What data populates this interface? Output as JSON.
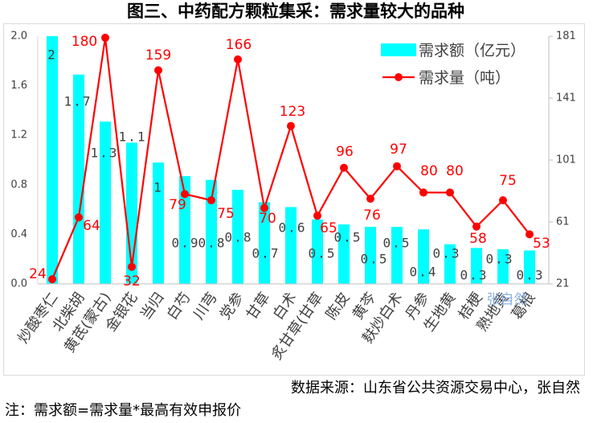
{
  "chart_data": {
    "type": "bar",
    "title": "图三、中药配方颗粒集采：需求量较大的品种",
    "categories": [
      "炒酸枣仁",
      "北柴胡",
      "黄芪(蒙古)",
      "金银花",
      "当归",
      "白芍",
      "川芎",
      "党参",
      "甘草",
      "白术",
      "炙甘草(甘草",
      "陈皮",
      "黄芩",
      "麸炒白术",
      "丹参",
      "生地黄",
      "桔梗",
      "熟地黄",
      "葛根"
    ],
    "series": [
      {
        "name": "需求额（亿元）",
        "type": "bar",
        "axis": "left",
        "color": "#00FFFF",
        "values": [
          2.0,
          1.69,
          1.31,
          1.14,
          0.98,
          0.87,
          0.84,
          0.76,
          0.66,
          0.62,
          0.52,
          0.48,
          0.46,
          0.46,
          0.44,
          0.32,
          0.29,
          0.28,
          0.27
        ],
        "data_labels": [
          "2",
          "1.7",
          "1.3",
          "1.1",
          "1",
          "0.9",
          "0.8",
          "0.8",
          "0.7",
          "0.6",
          "0.5",
          "0.5",
          "0.5",
          "0.5",
          "0.4",
          "0.3",
          "0.3",
          "0.3",
          "0.3"
        ]
      },
      {
        "name": "需求量（吨）",
        "type": "line",
        "axis": "right",
        "color": "#FF0000",
        "values": [
          24,
          64,
          180,
          32,
          159,
          79,
          75,
          166,
          70,
          123,
          65,
          96,
          76,
          97,
          80,
          80,
          58,
          75,
          53
        ]
      }
    ],
    "y_left": {
      "range": [
        0,
        2.0
      ],
      "ticks": [
        "0.0",
        "0.4",
        "0.8",
        "1.2",
        "1.6",
        "2.0"
      ]
    },
    "y_right": {
      "range": [
        21,
        181
      ],
      "ticks": [
        "21",
        "61",
        "101",
        "141",
        "181"
      ]
    },
    "grid": false,
    "legend": "top-right"
  },
  "watermark": "张自然",
  "source_note": "数据来源：山东省公共资源交易中心，张自然",
  "footnote": "注：需求额=需求量*最高有效申报价"
}
